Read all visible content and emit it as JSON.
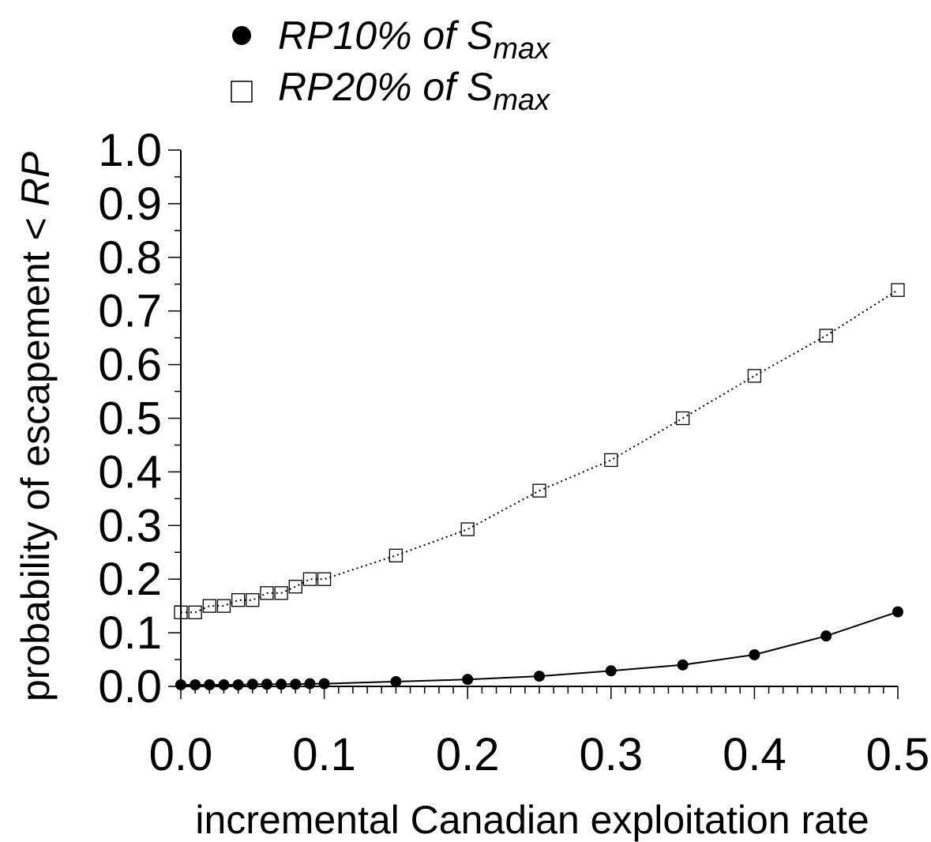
{
  "chart_data": {
    "type": "line",
    "xlabel": "incremental Canadian exploitation rate",
    "ylabel_prefix": "probability of escapement < ",
    "ylabel_italic": "RP",
    "xlim": [
      0.0,
      0.5
    ],
    "ylim": [
      0.0,
      1.0
    ],
    "x_ticks": [
      "0.0",
      "0.1",
      "0.2",
      "0.3",
      "0.4",
      "0.5"
    ],
    "y_ticks": [
      "0.0",
      "0.1",
      "0.2",
      "0.3",
      "0.4",
      "0.5",
      "0.6",
      "0.7",
      "0.8",
      "0.9",
      "1.0"
    ],
    "legend_placement": "top",
    "series": [
      {
        "name": "RP10% of Smax",
        "legend_main": "RP10% of S",
        "legend_sub": "max",
        "marker": "filled-circle",
        "line_style": "solid",
        "x": [
          0.0,
          0.01,
          0.02,
          0.03,
          0.04,
          0.05,
          0.06,
          0.07,
          0.08,
          0.09,
          0.1,
          0.15,
          0.2,
          0.25,
          0.3,
          0.35,
          0.4,
          0.45,
          0.5
        ],
        "y": [
          0.003,
          0.003,
          0.003,
          0.003,
          0.003,
          0.004,
          0.004,
          0.004,
          0.004,
          0.005,
          0.005,
          0.009,
          0.013,
          0.019,
          0.029,
          0.04,
          0.059,
          0.094,
          0.139
        ]
      },
      {
        "name": "RP20% of Smax",
        "legend_main": "RP20% of S",
        "legend_sub": "max",
        "marker": "open-square",
        "line_style": "dotted",
        "x": [
          0.0,
          0.01,
          0.02,
          0.03,
          0.04,
          0.05,
          0.06,
          0.07,
          0.08,
          0.09,
          0.1,
          0.15,
          0.2,
          0.25,
          0.3,
          0.35,
          0.4,
          0.45,
          0.5
        ],
        "y": [
          0.138,
          0.138,
          0.15,
          0.15,
          0.161,
          0.161,
          0.174,
          0.174,
          0.186,
          0.2,
          0.2,
          0.244,
          0.293,
          0.365,
          0.422,
          0.5,
          0.579,
          0.654,
          0.739
        ]
      }
    ]
  }
}
